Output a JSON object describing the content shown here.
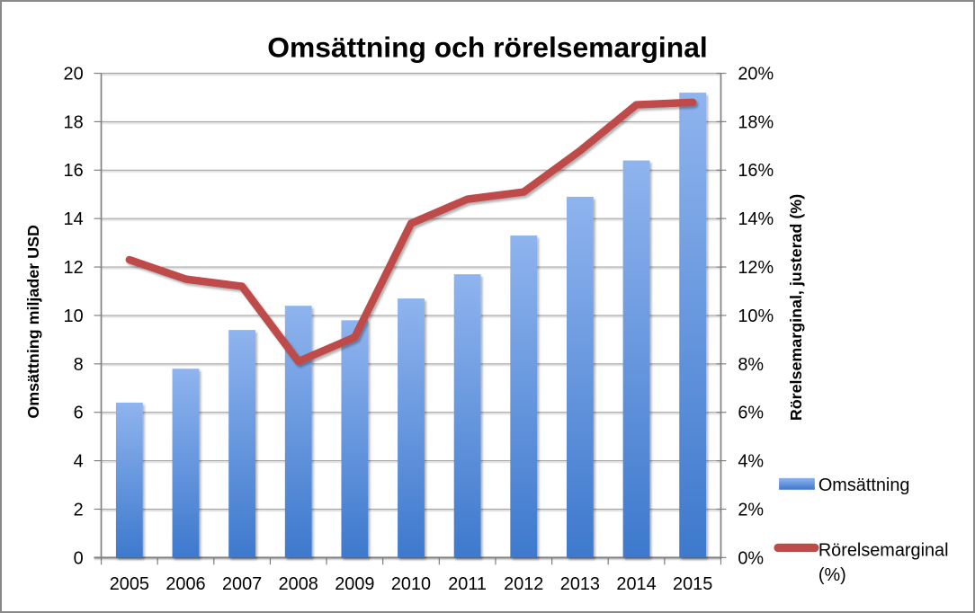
{
  "chart_data": {
    "type": "combo-bar-line",
    "title": "Omsättning och rörelsemarginal",
    "categories": [
      "2005",
      "2006",
      "2007",
      "2008",
      "2009",
      "2010",
      "2011",
      "2012",
      "2013",
      "2014",
      "2015"
    ],
    "series": [
      {
        "name": "Omsättning",
        "type": "bar",
        "axis": "left",
        "values": [
          6.4,
          7.8,
          9.4,
          10.4,
          9.8,
          10.7,
          11.7,
          13.3,
          14.9,
          16.4,
          19.2
        ]
      },
      {
        "name": "Rörelsemarginal (%)",
        "type": "line",
        "axis": "right",
        "values": [
          12.3,
          11.5,
          11.2,
          8.1,
          9.1,
          13.8,
          14.8,
          15.1,
          16.8,
          18.7,
          18.8
        ]
      }
    ],
    "left_axis": {
      "title": "Omsättning miljader USD",
      "min": 0,
      "max": 20,
      "step": 2,
      "suffix": ""
    },
    "right_axis": {
      "title": "Rörelsemarginal, justerad (%)",
      "min": 0,
      "max": 20,
      "step": 2,
      "suffix": "%"
    },
    "legend": [
      {
        "lines": [
          "Omsättning"
        ],
        "swatch": "bar"
      },
      {
        "lines": [
          "Rörelsemarginal",
          "(%)"
        ],
        "swatch": "line"
      }
    ],
    "legend_position": "right-bottom",
    "grid": true,
    "colors": {
      "bar_gradient_top": "#8FB4EE",
      "bar_gradient_bottom": "#3E79CD",
      "line": "#BE4B48",
      "gridline": "#A6A6A6",
      "axis_line": "#808080",
      "text": "#000000",
      "border": "#898989",
      "background": "#FFFFFF"
    }
  }
}
